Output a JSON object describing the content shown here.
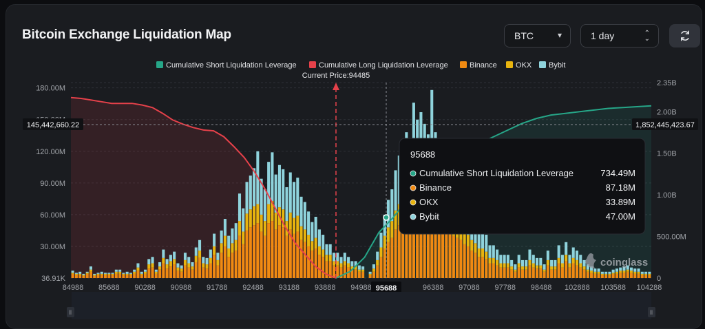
{
  "header": {
    "title": "Bitcoin Exchange Liquidation Map",
    "coin_select": "BTC",
    "range_select": "1 day",
    "refresh_icon": "refresh-icon"
  },
  "chart_data": {
    "type": "bar",
    "title": "Bitcoin Exchange Liquidation Map",
    "current_price_label": "Current Price:94485",
    "current_price": 94485,
    "legend": [
      {
        "name": "Cumulative Short Liquidation Leverage",
        "color": "#26a688"
      },
      {
        "name": "Cumulative Long Liquidation Leverage",
        "color": "#e5414a"
      },
      {
        "name": "Binance",
        "color": "#f08a12"
      },
      {
        "name": "OKX",
        "color": "#e8b40f"
      },
      {
        "name": "Bybit",
        "color": "#8fd3dc"
      }
    ],
    "x_tick_labels": [
      "84988",
      "85688",
      "90288",
      "90988",
      "91788",
      "92488",
      "93188",
      "93888",
      "94988",
      "95688",
      "96388",
      "97088",
      "97788",
      "98488",
      "102888",
      "103588",
      "104288"
    ],
    "y_left_ticks": [
      "180.00M",
      "150.00M",
      "120.00M",
      "90.00M",
      "60.00M",
      "30.00M",
      "36.91K"
    ],
    "y_left_values": [
      180000000,
      150000000,
      120000000,
      90000000,
      60000000,
      30000000,
      36910
    ],
    "y_right_ticks": [
      "2.35B",
      "2.00B",
      "1.50B",
      "1.00B",
      "500.00M",
      "0"
    ],
    "y_right_values": [
      2350000000,
      2000000000,
      1500000000,
      1000000000,
      500000000,
      0
    ],
    "crosshair": {
      "left_value_label": "145,442,660.22",
      "right_value_label": "1,852,445,423.67",
      "x_label": "95688"
    },
    "tooltip": {
      "title": "95688",
      "rows": [
        {
          "name": "Cumulative Short Liquidation Leverage",
          "value": "734.49M",
          "color": "#26a688"
        },
        {
          "name": "Binance",
          "value": "87.18M",
          "color": "#f08a12"
        },
        {
          "name": "OKX",
          "value": "33.89M",
          "color": "#e8b40f"
        },
        {
          "name": "Bybit",
          "value": "47.00M",
          "color": "#8fd3dc"
        }
      ]
    },
    "series": [
      {
        "name": "Binance",
        "values": [
          4,
          3,
          3,
          2,
          4,
          6,
          2,
          3,
          3,
          3,
          3,
          3,
          4,
          4,
          3,
          3,
          3,
          4,
          7,
          3,
          4,
          9,
          10,
          4,
          8,
          14,
          9,
          11,
          13,
          7,
          6,
          12,
          10,
          8,
          15,
          19,
          10,
          9,
          14,
          22,
          12,
          24,
          30,
          20,
          24,
          26,
          40,
          32,
          45,
          48,
          50,
          52,
          44,
          40,
          52,
          54,
          46,
          50,
          48,
          40,
          46,
          42,
          44,
          36,
          34,
          30,
          26,
          28,
          22,
          20,
          16,
          16,
          12,
          12,
          10,
          12,
          10,
          8,
          8,
          6,
          6,
          0,
          3,
          6,
          12,
          20,
          28,
          34,
          38,
          46,
          50,
          48,
          56,
          50,
          62,
          58,
          60,
          56,
          54,
          64,
          52,
          50,
          46,
          44,
          44,
          40,
          38,
          36,
          32,
          30,
          26,
          24,
          20,
          20,
          18,
          14,
          14,
          12,
          10,
          10,
          10,
          8,
          6,
          10,
          8,
          8,
          12,
          10,
          9,
          9,
          6,
          12,
          8,
          8,
          14,
          10,
          16,
          10,
          14,
          12,
          10,
          8,
          6,
          5,
          4,
          4,
          3,
          3,
          3,
          4,
          4,
          5,
          5,
          6,
          5,
          4,
          4,
          3,
          3,
          3
        ]
      },
      {
        "name": "OKX",
        "values": [
          1,
          1,
          1,
          1,
          1,
          2,
          1,
          1,
          1,
          1,
          1,
          1,
          2,
          2,
          1,
          1,
          1,
          2,
          3,
          1,
          2,
          4,
          4,
          2,
          3,
          5,
          4,
          5,
          5,
          3,
          3,
          5,
          4,
          3,
          6,
          7,
          4,
          4,
          5,
          8,
          5,
          9,
          10,
          8,
          9,
          10,
          14,
          12,
          16,
          17,
          18,
          18,
          16,
          14,
          18,
          19,
          16,
          17,
          17,
          14,
          16,
          15,
          15,
          13,
          12,
          11,
          9,
          10,
          8,
          7,
          6,
          6,
          4,
          4,
          4,
          4,
          4,
          3,
          3,
          2,
          2,
          0,
          1,
          3,
          5,
          9,
          12,
          14,
          16,
          18,
          20,
          20,
          22,
          20,
          24,
          22,
          22,
          22,
          20,
          24,
          20,
          18,
          18,
          16,
          16,
          15,
          14,
          13,
          12,
          11,
          10,
          9,
          8,
          8,
          7,
          5,
          5,
          5,
          4,
          4,
          4,
          3,
          2,
          4,
          3,
          3,
          5,
          4,
          3,
          3,
          2,
          5,
          3,
          3,
          5,
          4,
          6,
          4,
          5,
          5,
          4,
          3,
          2,
          2,
          2,
          2,
          1,
          1,
          1,
          1,
          2,
          2,
          2,
          2,
          2,
          2,
          2,
          1,
          1,
          1
        ]
      },
      {
        "name": "Bybit",
        "values": [
          2,
          1,
          2,
          1,
          1,
          3,
          1,
          1,
          2,
          1,
          1,
          1,
          2,
          2,
          1,
          2,
          1,
          2,
          4,
          2,
          2,
          5,
          6,
          2,
          4,
          8,
          5,
          6,
          7,
          4,
          3,
          7,
          6,
          4,
          8,
          10,
          6,
          6,
          8,
          12,
          7,
          12,
          16,
          12,
          14,
          16,
          26,
          22,
          30,
          32,
          36,
          50,
          34,
          30,
          40,
          46,
          36,
          40,
          38,
          32,
          38,
          34,
          36,
          28,
          26,
          22,
          18,
          20,
          16,
          14,
          10,
          10,
          8,
          8,
          6,
          8,
          6,
          5,
          5,
          4,
          3,
          0,
          2,
          4,
          8,
          14,
          20,
          26,
          30,
          38,
          46,
          44,
          60,
          48,
          80,
          70,
          75,
          68,
          62,
          90,
          66,
          58,
          50,
          46,
          44,
          40,
          36,
          34,
          30,
          28,
          24,
          22,
          18,
          18,
          16,
          12,
          12,
          10,
          8,
          8,
          8,
          6,
          5,
          8,
          6,
          6,
          10,
          8,
          7,
          7,
          5,
          9,
          6,
          6,
          12,
          8,
          12,
          8,
          10,
          9,
          8,
          6,
          5,
          4,
          3,
          3,
          2,
          2,
          2,
          3,
          3,
          3,
          4,
          4,
          3,
          3,
          3,
          2,
          2,
          2
        ]
      },
      {
        "name": "Cumulative Long Liquidation Leverage",
        "x_range": [
          84988,
          94485
        ],
        "values": [
          2.17,
          2.16,
          2.14,
          2.12,
          2.1,
          2.1,
          2.1,
          2.08,
          2.05,
          1.98,
          1.9,
          1.85,
          1.81,
          1.78,
          1.77,
          1.7,
          1.58,
          1.45,
          1.28,
          1.08,
          0.85,
          0.62,
          0.42,
          0.28,
          0.14,
          0.05,
          0
        ]
      },
      {
        "name": "Cumulative Short Liquidation Leverage",
        "x_range": [
          94485,
          104900
        ],
        "values": [
          0,
          0.08,
          0.25,
          0.55,
          0.73,
          0.95,
          1.12,
          1.28,
          1.42,
          1.55,
          1.62,
          1.7,
          1.78,
          1.86,
          1.92,
          1.96,
          1.98,
          2.0,
          2.02,
          2.04,
          2.05,
          2.06,
          2.07
        ]
      }
    ]
  },
  "watermark": "coinglass"
}
